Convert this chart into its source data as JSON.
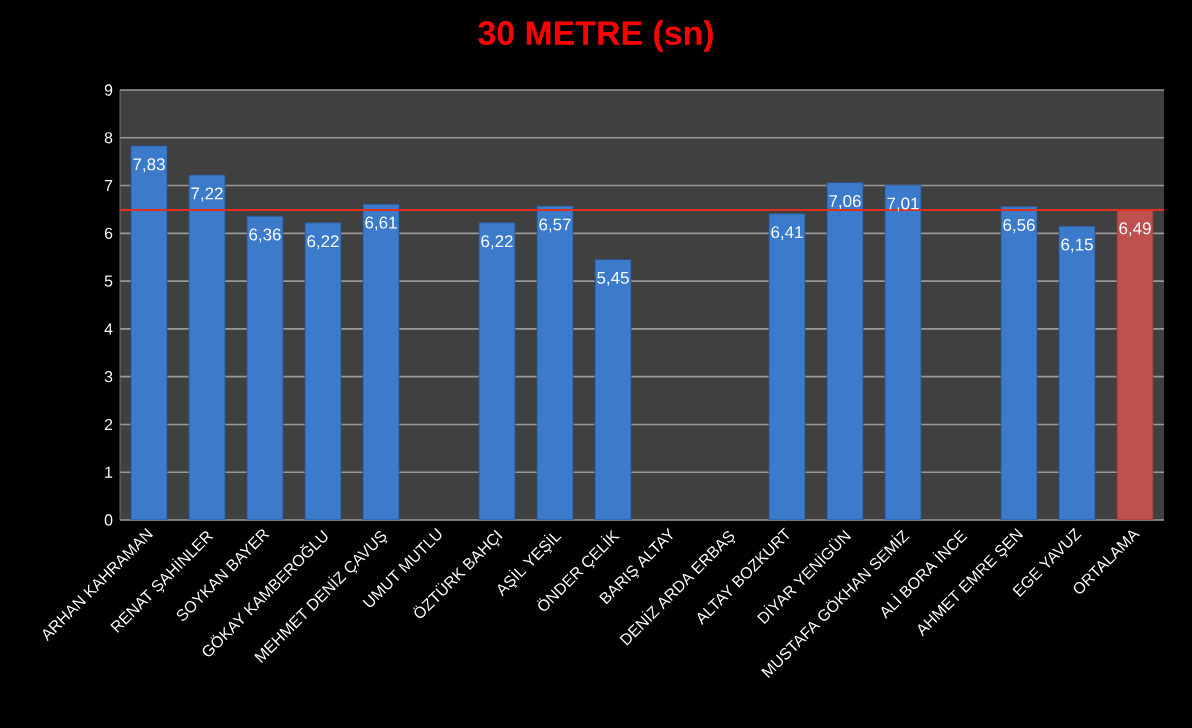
{
  "chart_data": {
    "type": "bar",
    "title": "30 METRE (sn)",
    "categories": [
      "ARHAN KAHRAMAN",
      "RENAT ŞAHİNLER",
      "SOYKAN BAYER",
      "GÖKAY KAMBEROĞLU",
      "MEHMET DENİZ ÇAVUŞ",
      "UMUT MUTLU",
      "ÖZTÜRK BAHÇI",
      "AŞİL YEŞİL",
      "ÖNDER ÇELİK",
      "BARIŞ ALTAY",
      "DENİZ ARDA ERBAŞ",
      "ALTAY BOZKURT",
      "DİYAR YENİGÜN",
      "MUSTAFA GÖKHAN SEMİZ",
      "ALİ BORA İNCE",
      "AHMET EMRE ŞEN",
      "EGE YAVUZ",
      "ORTALAMA"
    ],
    "values": [
      7.83,
      7.22,
      6.36,
      6.22,
      6.61,
      null,
      6.22,
      6.57,
      5.45,
      null,
      null,
      6.41,
      7.06,
      7.01,
      null,
      6.56,
      6.15,
      6.49
    ],
    "value_labels": [
      "7,83",
      "7,22",
      "6,36",
      "6,22",
      "6,61",
      null,
      "6,22",
      "6,57",
      "5,45",
      null,
      null,
      "6,41",
      "7,06",
      "7,01",
      null,
      "6,56",
      "6,15",
      "6,49"
    ],
    "colors": [
      "#3c7bcc",
      "#3c7bcc",
      "#3c7bcc",
      "#3c7bcc",
      "#3c7bcc",
      "#3c7bcc",
      "#3c7bcc",
      "#3c7bcc",
      "#3c7bcc",
      "#3c7bcc",
      "#3c7bcc",
      "#3c7bcc",
      "#3c7bcc",
      "#3c7bcc",
      "#3c7bcc",
      "#3c7bcc",
      "#3c7bcc",
      "#c0504d"
    ],
    "ylim": [
      0,
      9
    ],
    "yticks": [
      0,
      1,
      2,
      3,
      4,
      5,
      6,
      7,
      8,
      9
    ],
    "grid": "y",
    "ref_lines": [
      {
        "axis": "y",
        "value": 6.49,
        "color": "#e03020"
      }
    ]
  }
}
